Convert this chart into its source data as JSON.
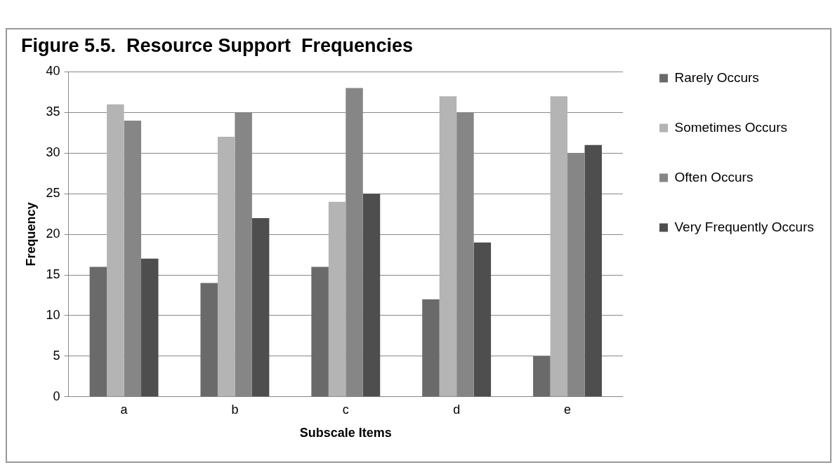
{
  "chart_data": {
    "type": "bar",
    "title": "Figure 5.5.  Resource Support  Frequencies",
    "xlabel": "Subscale Items",
    "ylabel": "Frequency",
    "categories": [
      "a",
      "b",
      "c",
      "d",
      "e"
    ],
    "series": [
      {
        "name": "Rarely Occurs",
        "color": "#6a6a6a",
        "values": [
          16,
          14,
          16,
          12,
          5
        ]
      },
      {
        "name": "Sometimes Occurs",
        "color": "#b4b4b4",
        "values": [
          36,
          32,
          24,
          37,
          37
        ]
      },
      {
        "name": "Often Occurs",
        "color": "#868686",
        "values": [
          34,
          35,
          38,
          35,
          30
        ]
      },
      {
        "name": "Very Frequently Occurs",
        "color": "#4e4e4e",
        "values": [
          17,
          22,
          25,
          19,
          31
        ]
      }
    ],
    "ylim": [
      0,
      40
    ],
    "yticks": [
      0,
      5,
      10,
      15,
      20,
      25,
      30,
      35,
      40
    ],
    "grid": "y",
    "legend": "right"
  }
}
